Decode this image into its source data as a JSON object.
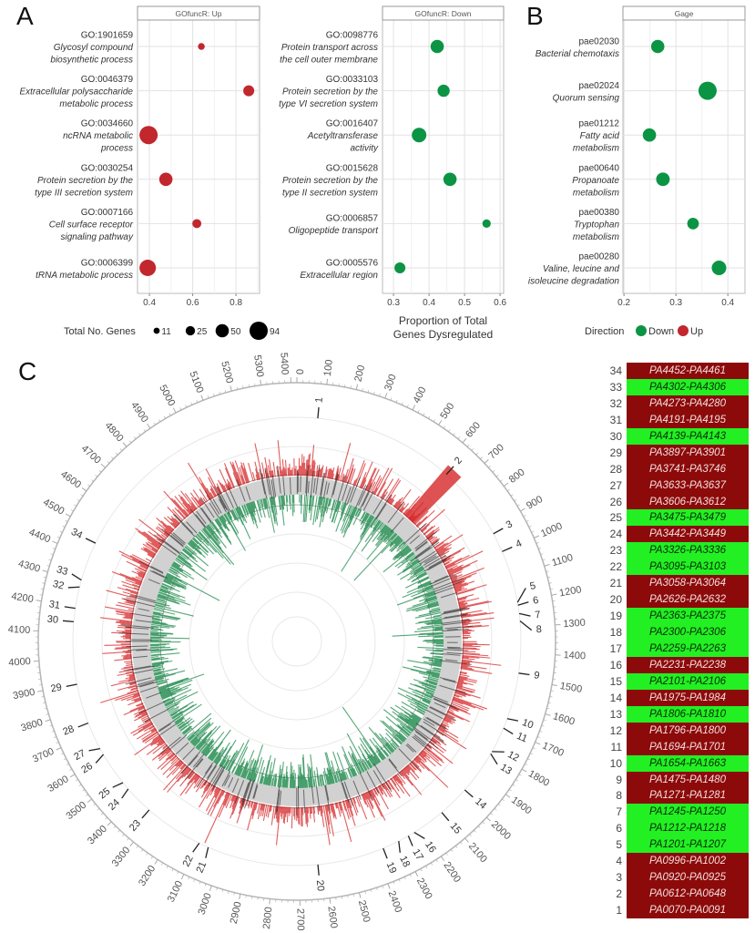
{
  "panels": {
    "a": "A",
    "b": "B",
    "c": "C"
  },
  "chart_data": [
    {
      "type": "scatter",
      "title": "GOfuncR: Up",
      "color": "#c1272d",
      "xlim": [
        0.345,
        0.909
      ],
      "xticks": [
        0.4,
        0.6,
        0.8
      ],
      "xlabel": [],
      "points": [
        {
          "id": "GO:1901659",
          "name": [
            "Glycosyl compound",
            "biosynthetic process"
          ],
          "x": 0.64,
          "size": 13
        },
        {
          "id": "GO:0046379",
          "name": [
            "Extracellular polysaccharide",
            "metabolic process"
          ],
          "x": 0.859,
          "size": 34
        },
        {
          "id": "GO:0034660",
          "name": [
            "ncRNA metabolic",
            "process"
          ],
          "x": 0.396,
          "size": 94
        },
        {
          "id": "GO:0030254",
          "name": [
            "Protein secretion by the",
            "type III secretion system"
          ],
          "x": 0.476,
          "size": 50
        },
        {
          "id": "GO:0007166",
          "name": [
            "Cell surface receptor",
            "signaling pathway"
          ],
          "x": 0.619,
          "size": 23
        },
        {
          "id": "GO:0006399",
          "name": [
            "tRNA metabolic process"
          ],
          "x": 0.392,
          "size": 76
        }
      ]
    },
    {
      "type": "scatter",
      "title": "GOfuncR: Down",
      "color": "#0b9444",
      "xlim": [
        0.269,
        0.61
      ],
      "xticks": [
        0.3,
        0.4,
        0.5,
        0.6
      ],
      "xlabel": [
        "Proportion of Total",
        "Genes Dysregulated"
      ],
      "points": [
        {
          "id": "GO:0098776",
          "name": [
            "Protein transport across",
            "the cell outer membrane"
          ],
          "x": 0.423,
          "size": 50
        },
        {
          "id": "GO:0033103",
          "name": [
            "Protein secretion by the",
            "type VI secretion system"
          ],
          "x": 0.441,
          "size": 42
        },
        {
          "id": "GO:0016407",
          "name": [
            "Acetyltransferase",
            "activity"
          ],
          "x": 0.372,
          "size": 60
        },
        {
          "id": "GO:0015628",
          "name": [
            "Protein secretion by the",
            "type II secretion system"
          ],
          "x": 0.459,
          "size": 50
        },
        {
          "id": "GO:0006857",
          "name": [
            "Oligopeptide transport"
          ],
          "x": 0.562,
          "size": 20
        },
        {
          "id": "GO:0005576",
          "name": [
            "Extracellular region"
          ],
          "x": 0.318,
          "size": 34
        }
      ]
    },
    {
      "type": "scatter",
      "title": "Gage",
      "color": "#0b9444",
      "xlim": [
        0.198,
        0.433
      ],
      "xticks": [
        0.2,
        0.3,
        0.4
      ],
      "xlabel": [],
      "points": [
        {
          "id": "pae02030",
          "name": [
            "Bacterial chemotaxis"
          ],
          "x": 0.265,
          "size": 50
        },
        {
          "id": "pae02024",
          "name": [
            "Quorum sensing"
          ],
          "x": 0.361,
          "size": 94
        },
        {
          "id": "pae01212",
          "name": [
            "Fatty acid",
            "metabolism"
          ],
          "x": 0.249,
          "size": 50
        },
        {
          "id": "pae00640",
          "name": [
            "Propanoate",
            "metabolism"
          ],
          "x": 0.275,
          "size": 52
        },
        {
          "id": "pae00380",
          "name": [
            "Tryptophan",
            "metabolism"
          ],
          "x": 0.333,
          "size": 38
        },
        {
          "id": "pae00280",
          "name": [
            "Valine, leucine and",
            "isoleucine degradation"
          ],
          "x": 0.383,
          "size": 60
        }
      ]
    },
    {
      "type": "circular-bar",
      "range": [
        0,
        5420
      ],
      "tick_labels": [
        "0",
        "100",
        "200",
        "300",
        "400",
        "500",
        "600",
        "700",
        "800",
        "900",
        "1000",
        "1100",
        "1200",
        "1300",
        "1400",
        "1500",
        "1600",
        "1700",
        "1800",
        "1900",
        "2000",
        "2100",
        "2200",
        "2300",
        "2400",
        "2500",
        "2600",
        "2700",
        "2800",
        "2900",
        "3000",
        "3100",
        "3200",
        "3300",
        "3400",
        "3500",
        "3600",
        "3700",
        "3800",
        "3900",
        "4000",
        "4100",
        "4200",
        "4300",
        "4400",
        "4500",
        "4600",
        "4700",
        "4800",
        "4900",
        "5000",
        "5100",
        "5200",
        "5300",
        "5400"
      ],
      "up_color": "#d62728",
      "down_color": "#1f8a4c",
      "grid": true
    }
  ],
  "size_legend": {
    "title": "Total No. Genes",
    "values": [
      11,
      25,
      50,
      94
    ]
  },
  "direction_legend": {
    "title": "Direction",
    "items": [
      {
        "label": "Down",
        "color": "#0b9444"
      },
      {
        "label": "Up",
        "color": "#c1272d"
      }
    ]
  },
  "regions": [
    {
      "n": "34",
      "range": "PA4452-PA4461",
      "dir": "up"
    },
    {
      "n": "33",
      "range": "PA4302-PA4306",
      "dir": "down"
    },
    {
      "n": "32",
      "range": "PA4273-PA4280",
      "dir": "up"
    },
    {
      "n": "31",
      "range": "PA4191-PA4195",
      "dir": "up"
    },
    {
      "n": "30",
      "range": "PA4139-PA4143",
      "dir": "down"
    },
    {
      "n": "29",
      "range": "PA3897-PA3901",
      "dir": "up"
    },
    {
      "n": "28",
      "range": "PA3741-PA3746",
      "dir": "up"
    },
    {
      "n": "27",
      "range": "PA3633-PA3637",
      "dir": "up"
    },
    {
      "n": "26",
      "range": "PA3606-PA3612",
      "dir": "up"
    },
    {
      "n": "25",
      "range": "PA3475-PA3479",
      "dir": "down"
    },
    {
      "n": "24",
      "range": "PA3442-PA3449",
      "dir": "up"
    },
    {
      "n": "23",
      "range": "PA3326-PA3336",
      "dir": "down"
    },
    {
      "n": "22",
      "range": "PA3095-PA3103",
      "dir": "down"
    },
    {
      "n": "21",
      "range": "PA3058-PA3064",
      "dir": "up"
    },
    {
      "n": "20",
      "range": "PA2626-PA2632",
      "dir": "up"
    },
    {
      "n": "19",
      "range": "PA2363-PA2375",
      "dir": "down"
    },
    {
      "n": "18",
      "range": "PA2300-PA2306",
      "dir": "down"
    },
    {
      "n": "17",
      "range": "PA2259-PA2263",
      "dir": "down"
    },
    {
      "n": "16",
      "range": "PA2231-PA2238",
      "dir": "up"
    },
    {
      "n": "15",
      "range": "PA2101-PA2106",
      "dir": "down"
    },
    {
      "n": "14",
      "range": "PA1975-PA1984",
      "dir": "up"
    },
    {
      "n": "13",
      "range": "PA1806-PA1810",
      "dir": "down"
    },
    {
      "n": "12",
      "range": "PA1796-PA1800",
      "dir": "up"
    },
    {
      "n": "11",
      "range": "PA1694-PA1701",
      "dir": "up"
    },
    {
      "n": "10",
      "range": "PA1654-PA1663",
      "dir": "down"
    },
    {
      "n": "9",
      "range": "PA1475-PA1480",
      "dir": "up"
    },
    {
      "n": "8",
      "range": "PA1271-PA1281",
      "dir": "up"
    },
    {
      "n": "7",
      "range": "PA1245-PA1250",
      "dir": "down"
    },
    {
      "n": "6",
      "range": "PA1212-PA1218",
      "dir": "down"
    },
    {
      "n": "5",
      "range": "PA1201-PA1207",
      "dir": "down"
    },
    {
      "n": "4",
      "range": "PA0996-PA1002",
      "dir": "up"
    },
    {
      "n": "3",
      "range": "PA0920-PA0925",
      "dir": "up"
    },
    {
      "n": "2",
      "range": "PA0612-PA0648",
      "dir": "up"
    },
    {
      "n": "1",
      "range": "PA0070-PA0091",
      "dir": "up"
    }
  ],
  "colors": {
    "table_up": "#8c0a0a",
    "table_down": "#22f022",
    "table_up_text": "#f3dede",
    "table_down_text": "#0a2a0a"
  }
}
